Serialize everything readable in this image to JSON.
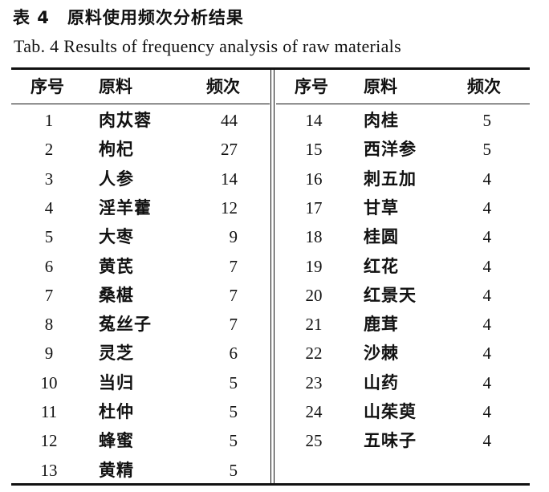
{
  "table_number_cn": "表 4",
  "title_cn": "原料使用频次分析结果",
  "title_en": "Tab. 4 Results of frequency analysis of raw materials",
  "headers": {
    "seq": "序号",
    "material": "原料",
    "frequency": "频次"
  },
  "left_rows": [
    {
      "seq": "1",
      "material": "肉苁蓉",
      "frequency": "44"
    },
    {
      "seq": "2",
      "material": "枸杞",
      "frequency": "27"
    },
    {
      "seq": "3",
      "material": "人参",
      "frequency": "14"
    },
    {
      "seq": "4",
      "material": "淫羊藿",
      "frequency": "12"
    },
    {
      "seq": "5",
      "material": "大枣",
      "frequency": "9"
    },
    {
      "seq": "6",
      "material": "黄芪",
      "frequency": "7"
    },
    {
      "seq": "7",
      "material": "桑椹",
      "frequency": "7"
    },
    {
      "seq": "8",
      "material": "菟丝子",
      "frequency": "7"
    },
    {
      "seq": "9",
      "material": "灵芝",
      "frequency": "6"
    },
    {
      "seq": "10",
      "material": "当归",
      "frequency": "5"
    },
    {
      "seq": "11",
      "material": "杜仲",
      "frequency": "5"
    },
    {
      "seq": "12",
      "material": "蜂蜜",
      "frequency": "5"
    },
    {
      "seq": "13",
      "material": "黄精",
      "frequency": "5"
    }
  ],
  "right_rows": [
    {
      "seq": "14",
      "material": "肉桂",
      "frequency": "5"
    },
    {
      "seq": "15",
      "material": "西洋参",
      "frequency": "5"
    },
    {
      "seq": "16",
      "material": "刺五加",
      "frequency": "4"
    },
    {
      "seq": "17",
      "material": "甘草",
      "frequency": "4"
    },
    {
      "seq": "18",
      "material": "桂圆",
      "frequency": "4"
    },
    {
      "seq": "19",
      "material": "红花",
      "frequency": "4"
    },
    {
      "seq": "20",
      "material": "红景天",
      "frequency": "4"
    },
    {
      "seq": "21",
      "material": "鹿茸",
      "frequency": "4"
    },
    {
      "seq": "22",
      "material": "沙棘",
      "frequency": "4"
    },
    {
      "seq": "23",
      "material": "山药",
      "frequency": "4"
    },
    {
      "seq": "24",
      "material": "山茱萸",
      "frequency": "4"
    },
    {
      "seq": "25",
      "material": "五味子",
      "frequency": "4"
    }
  ]
}
